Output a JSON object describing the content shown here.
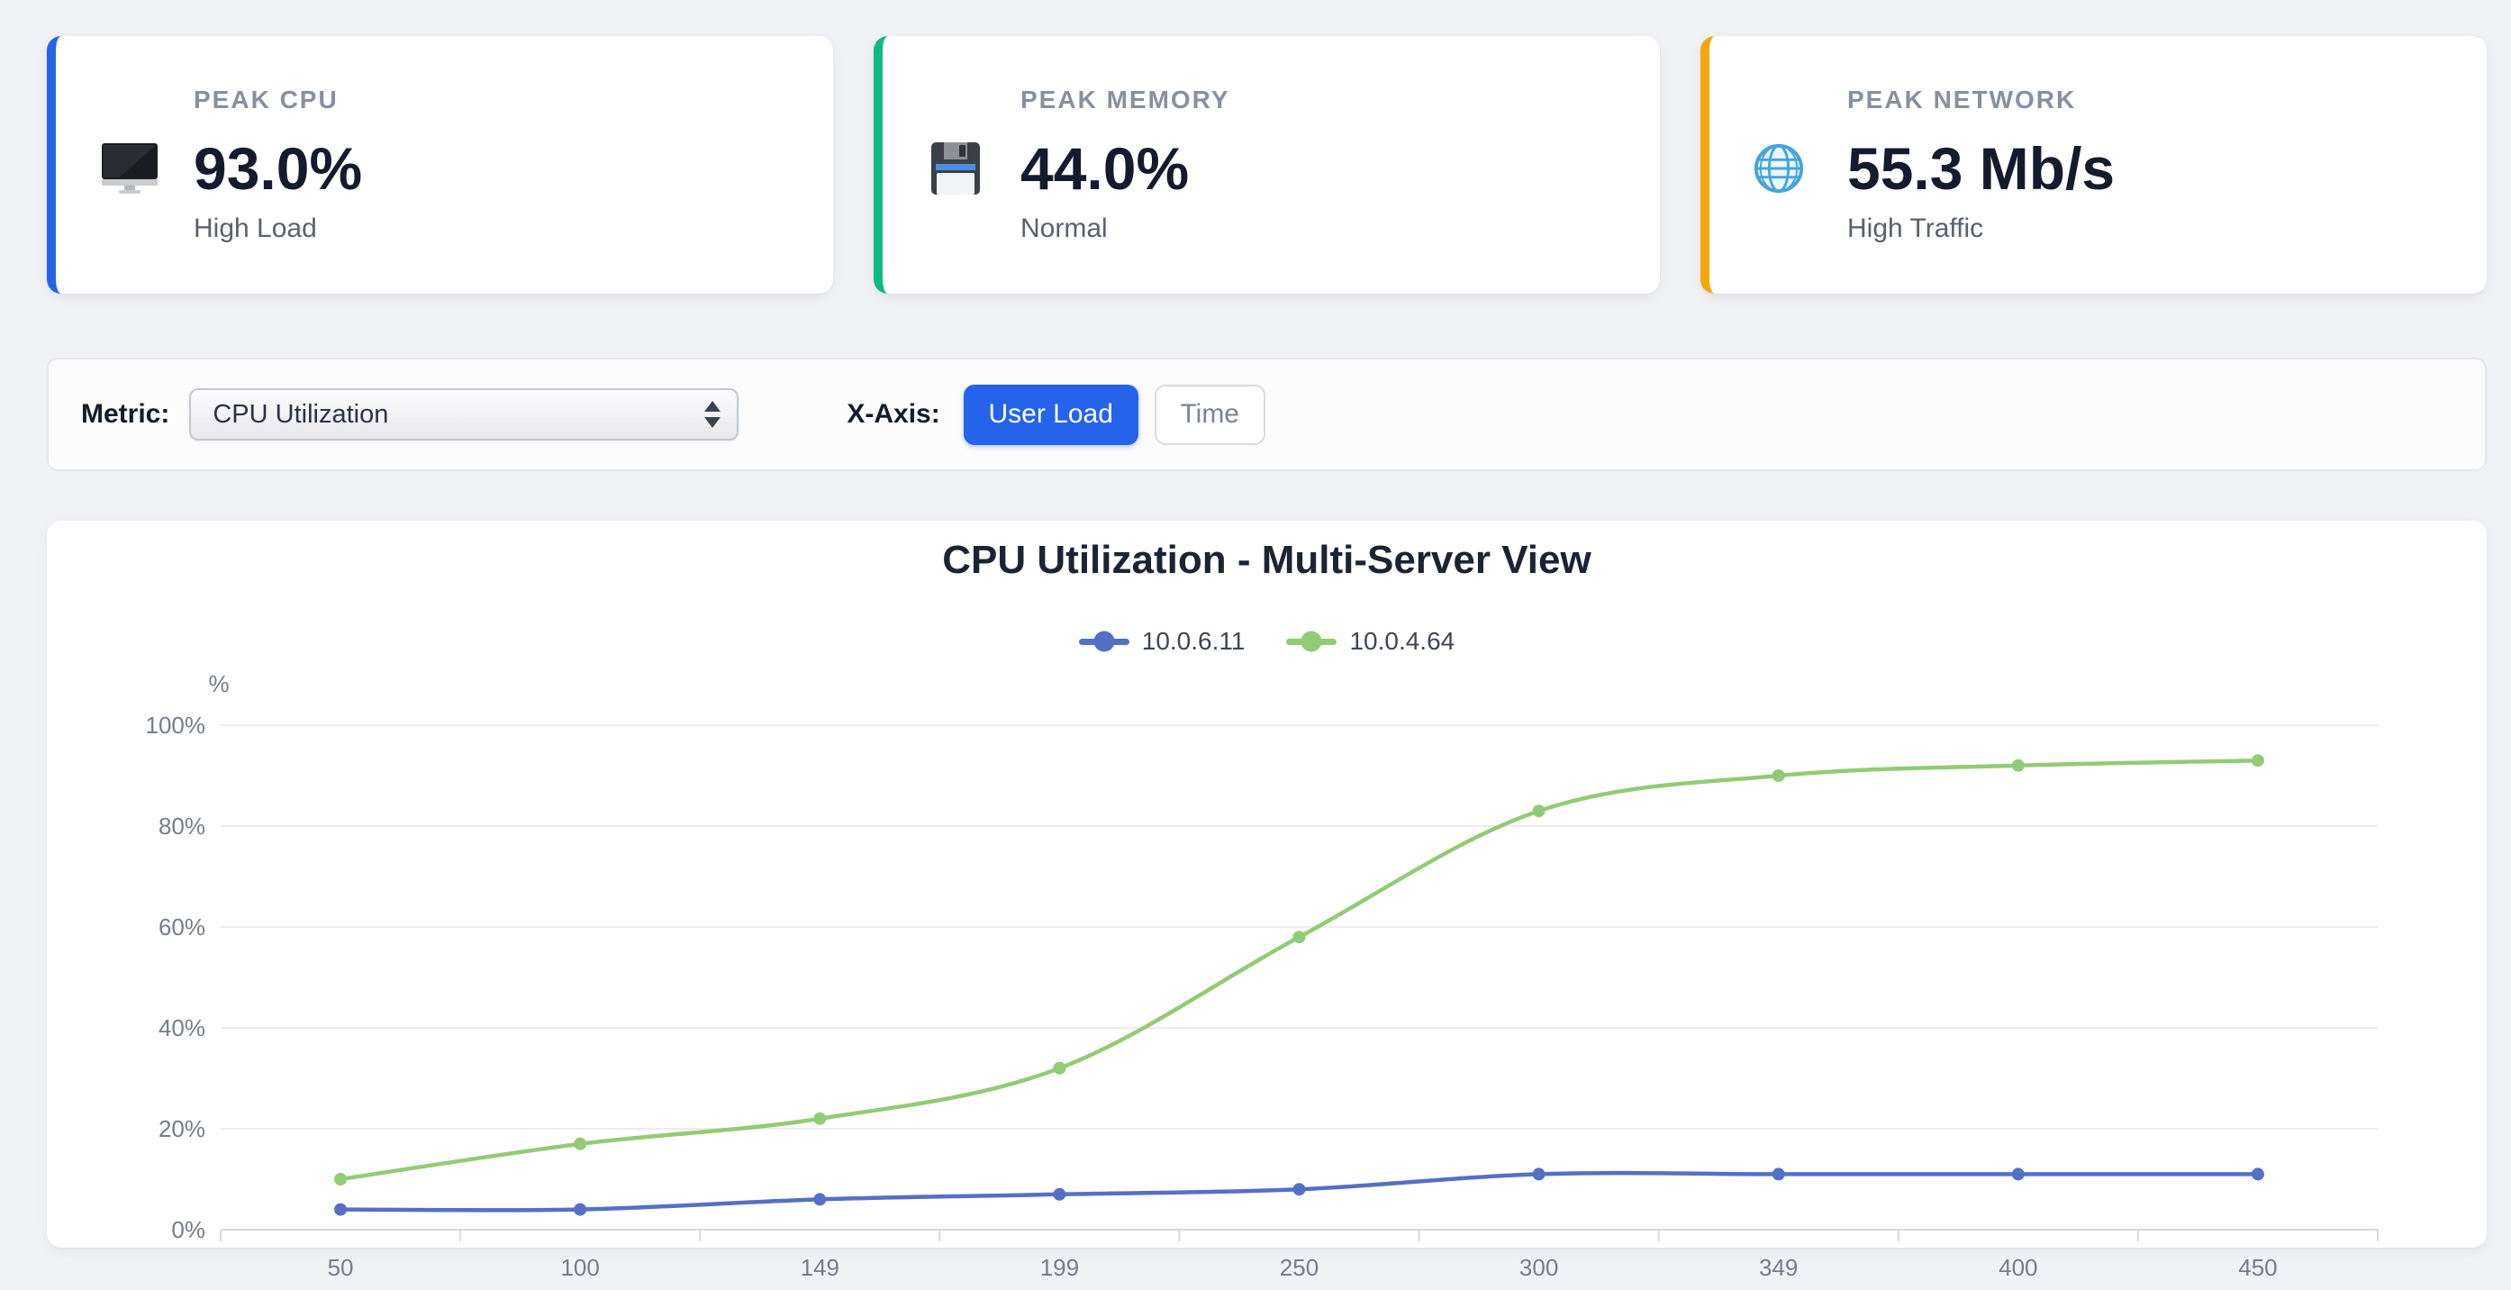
{
  "stat_cards": [
    {
      "label": "PEAK CPU",
      "value": "93.0%",
      "status": "High Load",
      "accent": "#2563eb",
      "icon": "desktop-computer-icon"
    },
    {
      "label": "PEAK MEMORY",
      "value": "44.0%",
      "status": "Normal",
      "accent": "#10b981",
      "icon": "floppy-disk-icon"
    },
    {
      "label": "PEAK NETWORK",
      "value": "55.3 Mb/s",
      "status": "High Traffic",
      "accent": "#f6a609",
      "icon": "globe-icon"
    }
  ],
  "controls": {
    "metric_label": "Metric:",
    "metric_selected": "CPU Utilization",
    "xaxis_label": "X-Axis:",
    "xaxis_options": [
      {
        "label": "User Load",
        "active": true
      },
      {
        "label": "Time",
        "active": false
      }
    ],
    "active_color": "#2563eb"
  },
  "chart_data": {
    "type": "line",
    "title": "CPU Utilization - Multi-Server View",
    "ylabel": "%",
    "xlabel": "",
    "x": [
      "50",
      "100",
      "149",
      "199",
      "250",
      "300",
      "349",
      "400",
      "450"
    ],
    "series": [
      {
        "name": "10.0.6.11",
        "color": "#5470c6",
        "values": [
          4,
          4,
          6,
          7,
          8,
          11,
          11,
          11,
          11
        ]
      },
      {
        "name": "10.0.4.64",
        "color": "#91cc75",
        "values": [
          10,
          17,
          22,
          32,
          58,
          83,
          90,
          92,
          93
        ]
      }
    ],
    "ylim": [
      0,
      100
    ],
    "ytick_labels": [
      "0%",
      "20%",
      "40%",
      "60%",
      "80%",
      "100%"
    ],
    "grid": true,
    "smooth": true,
    "legend_position": "top"
  }
}
